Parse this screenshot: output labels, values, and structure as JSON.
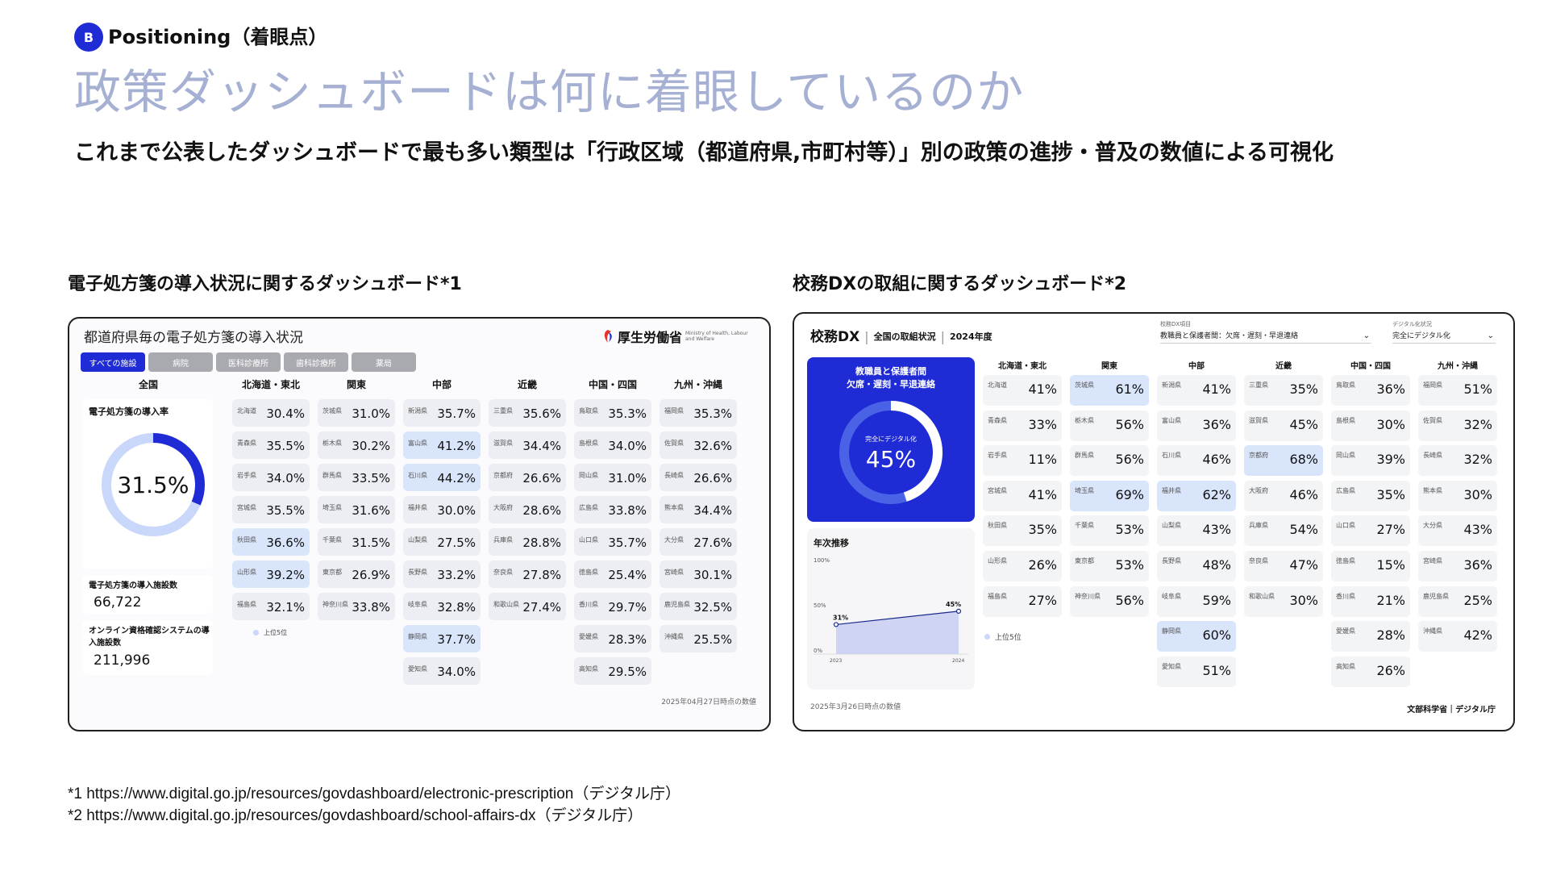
{
  "header": {
    "badge": "B",
    "section_label": "Positioning（着眼点）",
    "title": "政策ダッシュボードは何に着眼しているのか",
    "subtitle": "これまで公表したダッシュボードで最も多い類型は「行政区域（都道府県,市町村等）」別の政策の進捗・普及の数値による可視化"
  },
  "left_panel": {
    "caption": "電子処方箋の導入状況に関するダッシュボード*1",
    "title": "都道府県毎の電子処方箋の導入状況",
    "logo_text": "厚生労働省",
    "logo_sub": "Ministry of Health, Labour and Welfare",
    "tabs": [
      "すべての施設",
      "病院",
      "医科診療所",
      "歯科診療所",
      "薬局"
    ],
    "national_header": "全国",
    "rate_label": "電子処方箋の導入率",
    "rate_value": "31.5%",
    "rate_fraction": 0.315,
    "facilities_label": "電子処方箋の導入施設数",
    "facilities_value": "66,722",
    "online_label": "オンライン資格確認システムの導入施設数",
    "online_value": "211,996",
    "legend": "上位5位",
    "date_note": "2025年04月27日時点の数値",
    "regions": [
      {
        "name": "北海道・東北",
        "prefs": [
          [
            "北海道",
            "30.4%",
            0
          ],
          [
            "青森県",
            "35.5%",
            0
          ],
          [
            "岩手県",
            "34.0%",
            0
          ],
          [
            "宮城県",
            "35.5%",
            0
          ],
          [
            "秋田県",
            "36.6%",
            1
          ],
          [
            "山形県",
            "39.2%",
            1
          ],
          [
            "福島県",
            "32.1%",
            0
          ]
        ]
      },
      {
        "name": "関東",
        "prefs": [
          [
            "茨城県",
            "31.0%",
            0
          ],
          [
            "栃木県",
            "30.2%",
            0
          ],
          [
            "群馬県",
            "33.5%",
            0
          ],
          [
            "埼玉県",
            "31.6%",
            0
          ],
          [
            "千葉県",
            "31.5%",
            0
          ],
          [
            "東京都",
            "26.9%",
            0
          ],
          [
            "神奈川県",
            "33.8%",
            0
          ]
        ]
      },
      {
        "name": "中部",
        "prefs": [
          [
            "新潟県",
            "35.7%",
            0
          ],
          [
            "富山県",
            "41.2%",
            1
          ],
          [
            "石川県",
            "44.2%",
            1
          ],
          [
            "福井県",
            "30.0%",
            0
          ],
          [
            "山梨県",
            "27.5%",
            0
          ],
          [
            "長野県",
            "33.2%",
            0
          ],
          [
            "岐阜県",
            "32.8%",
            0
          ],
          [
            "静岡県",
            "37.7%",
            1
          ],
          [
            "愛知県",
            "34.0%",
            0
          ]
        ]
      },
      {
        "name": "近畿",
        "prefs": [
          [
            "三重県",
            "35.6%",
            0
          ],
          [
            "滋賀県",
            "34.4%",
            0
          ],
          [
            "京都府",
            "26.6%",
            0
          ],
          [
            "大阪府",
            "28.6%",
            0
          ],
          [
            "兵庫県",
            "28.8%",
            0
          ],
          [
            "奈良県",
            "27.8%",
            0
          ],
          [
            "和歌山県",
            "27.4%",
            0
          ]
        ]
      },
      {
        "name": "中国・四国",
        "prefs": [
          [
            "鳥取県",
            "35.3%",
            0
          ],
          [
            "島根県",
            "34.0%",
            0
          ],
          [
            "岡山県",
            "31.0%",
            0
          ],
          [
            "広島県",
            "33.8%",
            0
          ],
          [
            "山口県",
            "35.7%",
            0
          ],
          [
            "徳島県",
            "25.4%",
            0
          ],
          [
            "香川県",
            "29.7%",
            0
          ],
          [
            "愛媛県",
            "28.3%",
            0
          ],
          [
            "高知県",
            "29.5%",
            0
          ]
        ]
      },
      {
        "name": "九州・沖縄",
        "prefs": [
          [
            "福岡県",
            "35.3%",
            0
          ],
          [
            "佐賀県",
            "32.6%",
            0
          ],
          [
            "長崎県",
            "26.6%",
            0
          ],
          [
            "熊本県",
            "34.4%",
            0
          ],
          [
            "大分県",
            "27.6%",
            0
          ],
          [
            "宮崎県",
            "30.1%",
            0
          ],
          [
            "鹿児島県",
            "32.5%",
            0
          ],
          [
            "沖縄県",
            "25.5%",
            0
          ]
        ]
      }
    ]
  },
  "right_panel": {
    "caption": "校務DXの取組に関するダッシュボード*2",
    "title_main": "校務DX",
    "title_sub": "全国の取組状況",
    "title_year": "2024年度",
    "select1_caption": "校務DX項目",
    "select1_value": "教職員と保護者間：欠席・遅刻・早退連絡",
    "select2_caption": "デジタル化状況",
    "select2_value": "完全にデジタル化",
    "card_title": "教職員と保護者間\n欠席・遅刻・早退連絡",
    "donut_label": "完全にデジタル化",
    "donut_value": "45%",
    "donut_fraction": 0.45,
    "trend_title": "年次推移",
    "trend_y_top": "100%",
    "trend_y_mid": "50%",
    "trend_y_bot": "0%",
    "trend_points": [
      {
        "x": "2023",
        "label": "31%",
        "value": 31
      },
      {
        "x": "2024",
        "label": "45%",
        "value": 45
      }
    ],
    "legend": "上位5位",
    "date_note": "2025年3月26日時点の数値",
    "footer": "文部科学省｜デジタル庁",
    "regions": [
      {
        "name": "北海道・東北",
        "prefs": [
          [
            "北海道",
            "41%",
            0
          ],
          [
            "青森県",
            "33%",
            0
          ],
          [
            "岩手県",
            "11%",
            0
          ],
          [
            "宮城県",
            "41%",
            0
          ],
          [
            "秋田県",
            "35%",
            0
          ],
          [
            "山形県",
            "26%",
            0
          ],
          [
            "福島県",
            "27%",
            0
          ]
        ]
      },
      {
        "name": "関東",
        "prefs": [
          [
            "茨城県",
            "61%",
            1
          ],
          [
            "栃木県",
            "56%",
            0
          ],
          [
            "群馬県",
            "56%",
            0
          ],
          [
            "埼玉県",
            "69%",
            1
          ],
          [
            "千葉県",
            "53%",
            0
          ],
          [
            "東京都",
            "53%",
            0
          ],
          [
            "神奈川県",
            "56%",
            0
          ]
        ]
      },
      {
        "name": "中部",
        "prefs": [
          [
            "新潟県",
            "41%",
            0
          ],
          [
            "富山県",
            "36%",
            0
          ],
          [
            "石川県",
            "46%",
            0
          ],
          [
            "福井県",
            "62%",
            1
          ],
          [
            "山梨県",
            "43%",
            0
          ],
          [
            "長野県",
            "48%",
            0
          ],
          [
            "岐阜県",
            "59%",
            0
          ],
          [
            "静岡県",
            "60%",
            1
          ],
          [
            "愛知県",
            "51%",
            0
          ]
        ]
      },
      {
        "name": "近畿",
        "prefs": [
          [
            "三重県",
            "35%",
            0
          ],
          [
            "滋賀県",
            "45%",
            0
          ],
          [
            "京都府",
            "68%",
            1
          ],
          [
            "大阪府",
            "46%",
            0
          ],
          [
            "兵庫県",
            "54%",
            0
          ],
          [
            "奈良県",
            "47%",
            0
          ],
          [
            "和歌山県",
            "30%",
            0
          ]
        ]
      },
      {
        "name": "中国・四国",
        "prefs": [
          [
            "鳥取県",
            "36%",
            0
          ],
          [
            "島根県",
            "30%",
            0
          ],
          [
            "岡山県",
            "39%",
            0
          ],
          [
            "広島県",
            "35%",
            0
          ],
          [
            "山口県",
            "27%",
            0
          ],
          [
            "徳島県",
            "15%",
            0
          ],
          [
            "香川県",
            "21%",
            0
          ],
          [
            "愛媛県",
            "28%",
            0
          ],
          [
            "高知県",
            "26%",
            0
          ]
        ]
      },
      {
        "name": "九州・沖縄",
        "prefs": [
          [
            "福岡県",
            "51%",
            0
          ],
          [
            "佐賀県",
            "32%",
            0
          ],
          [
            "長崎県",
            "32%",
            0
          ],
          [
            "熊本県",
            "30%",
            0
          ],
          [
            "大分県",
            "43%",
            0
          ],
          [
            "宮崎県",
            "36%",
            0
          ],
          [
            "鹿児島県",
            "25%",
            0
          ],
          [
            "沖縄県",
            "42%",
            0
          ]
        ]
      }
    ]
  },
  "footnotes": [
    "*1 https://www.digital.go.jp/resources/govdashboard/electronic-prescription（デジタル庁）",
    "*2 https://www.digital.go.jp/resources/govdashboard/school-affairs-dx（デジタル庁）"
  ],
  "colors": {
    "accent": "#1f2bd4",
    "title": "#a5b0d3",
    "highlight": "#d9e5fb",
    "donut_track": "#c9d7fb"
  }
}
